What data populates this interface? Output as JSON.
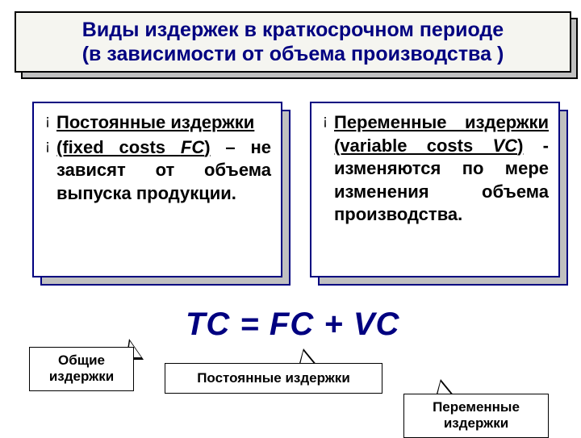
{
  "slide": {
    "background": "#ffffff",
    "accent_color": "#000080",
    "shadow_color": "#c0c0c0",
    "border_color_dark": "#000000"
  },
  "header": {
    "title": "Виды издержек в краткосрочном периоде\n(в зависимости от объема производства )"
  },
  "left_card": {
    "bullets": [
      {
        "html": "<span class='u'>Постоянные издержки</span>"
      },
      {
        "html": "<span class='u'>(fixed costs <i>FC</i>)</span> – не зависят от объема выпуска продукции."
      }
    ]
  },
  "right_card": {
    "bullets": [
      {
        "html": "<span class='u'>Переменные издержки</span> <span class='u'>(variable costs <i>VC</i>)</span> - изменяются по мере изменения объема производства."
      }
    ]
  },
  "formula": {
    "text": "TC = FC + VC"
  },
  "callouts": {
    "total": {
      "label": "Общие издержки"
    },
    "fixed": {
      "label": "Постоянные издержки"
    },
    "variable": {
      "label": "Переменные издержки"
    }
  },
  "typography": {
    "title_fontsize": 25,
    "body_fontsize": 22,
    "formula_fontsize": 40,
    "callout_fontsize": 17,
    "font_family": "Arial"
  }
}
